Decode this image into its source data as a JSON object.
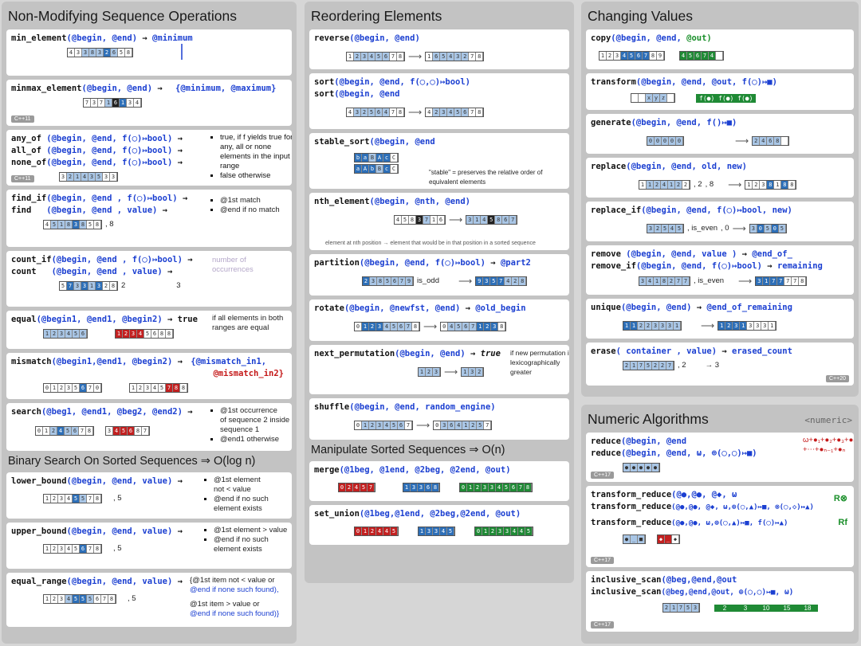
{
  "col1": {
    "title": "Non-Modifying Sequence Operations",
    "min_element": {
      "fn": "min_element",
      "args": "(@begin, @end)",
      "arrow": "→",
      "ret": "@minimum",
      "cells": [
        "4",
        "3",
        "3",
        "8",
        "3",
        "2",
        "6",
        "5",
        "8"
      ]
    },
    "minmax_element": {
      "fn": "minmax_element",
      "args": "(@begin, @end)",
      "arrow": "→",
      "ret": "{@minimum, @maximum}",
      "cells": [
        "7",
        "3",
        "7",
        "1",
        "6",
        "1",
        "3",
        "4"
      ]
    },
    "any_of": {
      "fn": "any_of",
      "args": "(@begin, @end, f(◯)↦bool)",
      "arrow": "→"
    },
    "all_of": {
      "fn": "all_of",
      "args": "(@begin, @end, f(◯)↦bool)",
      "arrow": "→"
    },
    "none_of": {
      "fn": "none_of",
      "args": "(@begin, @end, f(◯)↦bool)",
      "arrow": "→"
    },
    "pred_note1": "true, if f yields true for any, all or none elements in the input range",
    "pred_note2": "false otherwise",
    "find_if": {
      "fn": "find_if",
      "args": "(@begin, @end  , f(◯)↦bool)",
      "arrow": "→"
    },
    "find": {
      "fn": "find",
      "args": "(@begin, @end  , value)",
      "arrow": "→"
    },
    "find_note1": "@1st match",
    "find_note2": "@end if no match",
    "count_if": {
      "fn": "count_if",
      "args": "(@begin, @end  , f(◯)↦bool)",
      "arrow": "→"
    },
    "count": {
      "fn": "count",
      "args": "(@begin, @end  , value)",
      "arrow": "→"
    },
    "count_note": "number of occurrences",
    "count_vals": [
      "2",
      "3"
    ],
    "equal": {
      "fn": "equal",
      "args": "(@begin1, @end1, @begin2)",
      "arrow": "→",
      "ret": "true"
    },
    "equal_note": "if all elements in both ranges are equal",
    "mismatch": {
      "fn": "mismatch",
      "args": "(@begin1,@end1, @begin2)",
      "arrow": "→",
      "ret1": "{@mismatch_in1,",
      "ret2": "@mismatch_in2}"
    },
    "search": {
      "fn": "search",
      "args": "(@beg1, @end1, @beg2, @end2)",
      "arrow": "→"
    },
    "search_note1": "@1st occurrence",
    "search_note2": "of sequence 2 inside sequence 1",
    "search_note3": "@end1 otherwise",
    "bin_title": "Binary Search On Sorted Sequences ⇒ O(log n)",
    "lower_bound": {
      "fn": "lower_bound",
      "args": "(@begin, @end, value)",
      "arrow": "→"
    },
    "lb_note1": "@1st element",
    "lb_note2": "not < value",
    "lb_note3": "@end if no such element exists",
    "upper_bound": {
      "fn": "upper_bound",
      "args": "(@begin, @end, value)",
      "arrow": "→"
    },
    "ub_note1": "@1st element > value",
    "ub_note2": "@end if no such element exists",
    "equal_range": {
      "fn": "equal_range",
      "args": "(@begin, @end, value)",
      "arrow": "→"
    },
    "er_note1": "{@1st item not < value or",
    "er_note2": "@end if none such found),",
    "er_note3": "@1st item > value or",
    "er_note4": "@end if none such found)}",
    "er_val": "5"
  },
  "col2": {
    "title": "Reordering Elements",
    "reverse": {
      "fn": "reverse",
      "args": "(@begin, @end)"
    },
    "sort": {
      "fn": "sort",
      "args": "(@begin, @end, f(◯,◯)↦bool)"
    },
    "sort2": {
      "fn": "sort",
      "args": "(@begin, @end"
    },
    "stable_sort": {
      "fn": "stable_sort",
      "args": "(@begin, @end"
    },
    "stable_note": "\"stable\" = preserves the relative order of equivalent elements",
    "nth_element": {
      "fn": "nth_element",
      "args": "(@begin, @nth, @end)"
    },
    "nth_note": "element at nth position → element that would be in that position in a sorted sequence",
    "partition": {
      "fn": "partition",
      "args": "(@begin, @end, f(◯)↦bool)",
      "arrow": "→",
      "ret": "@part2"
    },
    "partition_pred": "is_odd",
    "rotate": {
      "fn": "rotate",
      "args": "(@begin, @newfst, @end)",
      "arrow": "→",
      "ret": "@old_begin"
    },
    "next_permutation": {
      "fn": "next_permutation",
      "args": "(@begin, @end)",
      "arrow": "→",
      "ret": "true"
    },
    "perm_note": "if new permutation is lexicographically greater",
    "shuffle": {
      "fn": "shuffle",
      "args": "(@begin, @end, random_engine)"
    },
    "manip_title": "Manipulate Sorted Sequences ⇒ O(n)",
    "merge": {
      "fn": "merge",
      "args": "(@1beg, @1end, @2beg, @2end, @out)"
    },
    "set_union": {
      "fn": "set_union",
      "args": "(@1beg,@1end, @2beg,@2end, @out)"
    }
  },
  "col3": {
    "title": "Changing Values",
    "copy": {
      "fn": "copy",
      "args": "(@begin, @end,",
      "out": "@out)"
    },
    "transform": {
      "fn": "transform",
      "args": "(@begin, @end, @out, f(◯)↦■)"
    },
    "transform_out": "f(●) f(●) f(●)",
    "generate": {
      "fn": "generate",
      "args": "(@begin, @end, f()↦■)"
    },
    "replace": {
      "fn": "replace",
      "args": "(@begin,  @end, old, new)"
    },
    "replace_vals": [
      ", 2",
      ", 8"
    ],
    "replace_if": {
      "fn": "replace_if",
      "args": "(@begin, @end, f(◯)↦bool, new)"
    },
    "replace_if_vals": [
      ", is_even",
      ", 0"
    ],
    "remove": {
      "fn": "remove",
      "args": "  (@begin, @end, value  )",
      "arrow": "→",
      "ret": "@end_of_"
    },
    "remove_if": {
      "fn": "remove_if",
      "args": "(@begin, @end, f(◯)↦bool)",
      "arrow": "→",
      "ret": "remaining"
    },
    "remove_vals": [
      ", is_even"
    ],
    "unique": {
      "fn": "unique",
      "args": "(@begin, @end)",
      "arrow": "→",
      "ret": "@end_of_remaining"
    },
    "erase": {
      "fn": "erase",
      "args": "(  container , value)",
      "arrow": "→",
      "ret": "erased_count"
    },
    "erase_vals": [
      ", 2",
      "→ 3"
    ]
  },
  "col4": {
    "title": "Numeric Algorithms",
    "header_tag": "<numeric>",
    "reduce1": {
      "fn": "reduce",
      "args": "(@begin, @end"
    },
    "reduce2": {
      "fn": "reduce",
      "args": "(@begin, @end, ω, ⊕(◯,◯)↦■)"
    },
    "reduce_ret": "ω+●₁+●₂+●₃+●ₙ",
    "reduce_ret2": "+⋯+●ₙ₋₁+●ₙ",
    "tr1": {
      "fn": "transform_reduce",
      "args": "(@●,@●, @◆, ω"
    },
    "tr2": {
      "fn": "transform_reduce",
      "args": "(@●,@●, @◆, ω,⊕(◯,▲)↦■, ⊗(◯,◇)↦▲)"
    },
    "tr3": {
      "fn": "transform_reduce",
      "args": "(@●,@●,     ω,⊕(◯,▲)↦■, f(◯)↦▲)"
    },
    "tr_ret1": "R⊗",
    "tr_ret2": "Rf",
    "scan1": {
      "fn": "inclusive_scan",
      "args": "(@beg,@end,@out"
    },
    "scan2": {
      "fn": "inclusive_scan",
      "args": "(@beg,@end,@out, ⊕(◯,◯)↦■, ω)"
    },
    "scan_out": [
      "2",
      "3",
      "10",
      "15",
      "18"
    ]
  }
}
